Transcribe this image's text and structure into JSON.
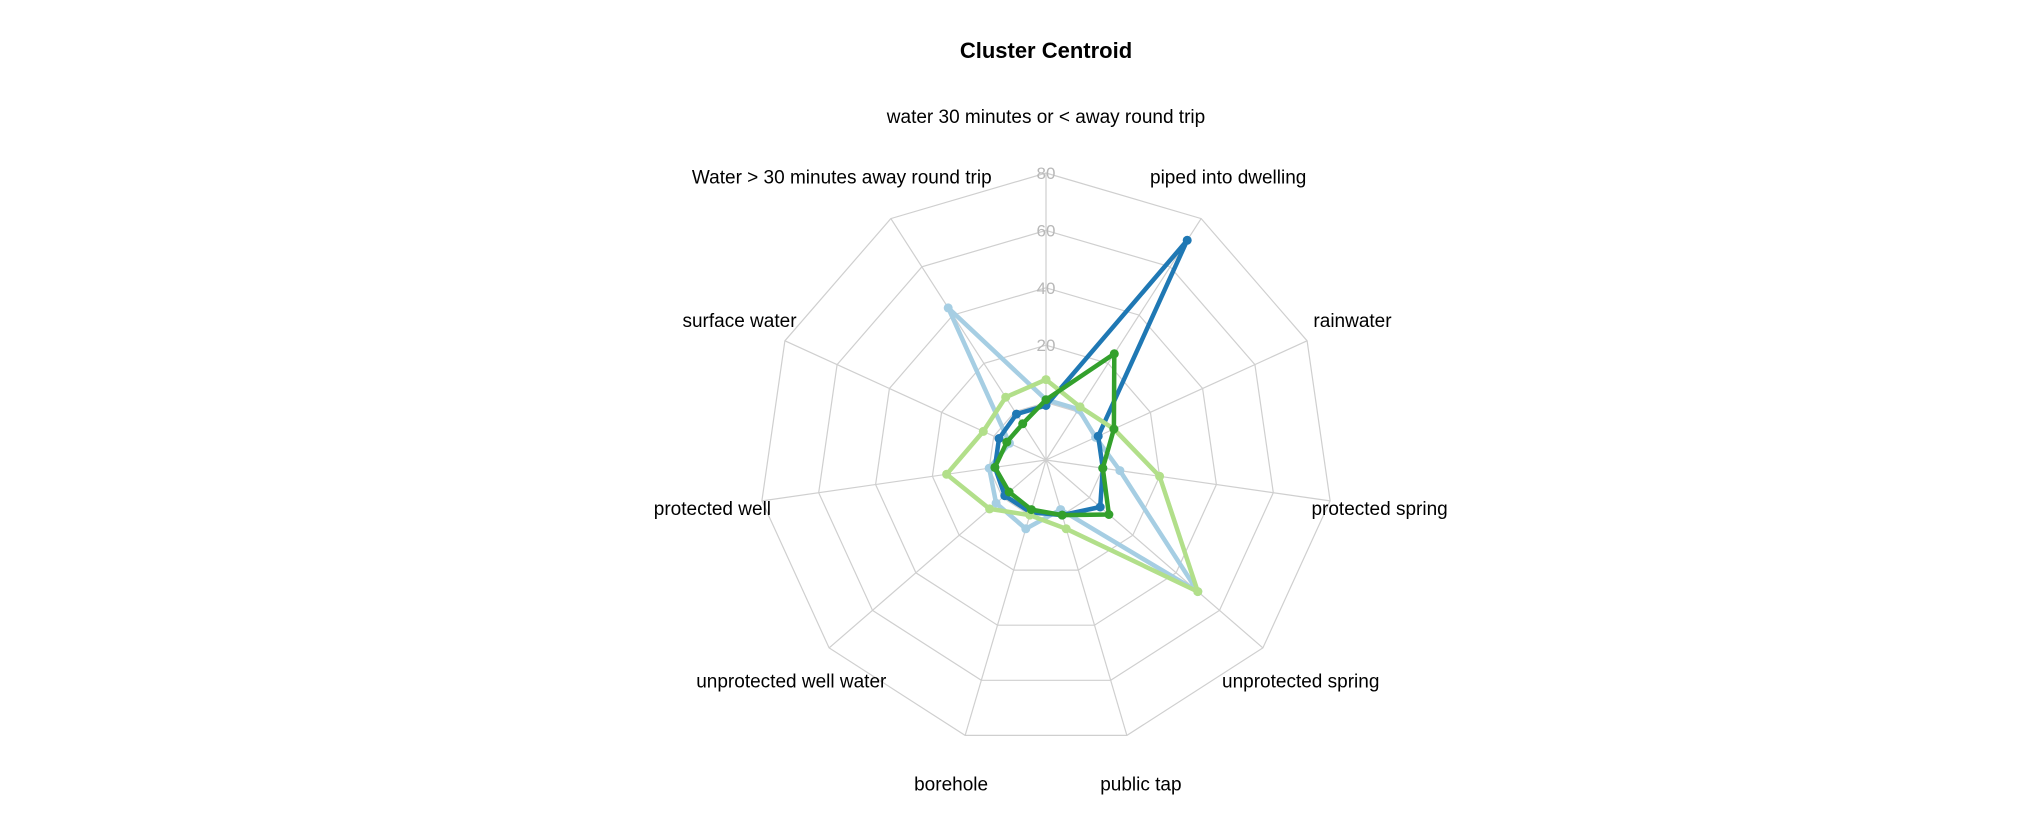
{
  "chart_data": {
    "type": "radar",
    "title": "Cluster Centroid",
    "axes": [
      "water 30 minutes or < away round trip",
      "piped into dwelling",
      "rainwater",
      "protected spring",
      "unprotected spring",
      "public tap",
      "borehole",
      "unprotected well water",
      "protected well",
      "surface water",
      "Water > 30 minutes away round trip"
    ],
    "rlim": [
      -20,
      80
    ],
    "ticks": [
      0,
      20,
      40,
      60,
      80
    ],
    "tick_labels": [
      "0",
      "20",
      "40",
      "60",
      "80"
    ],
    "grid": true,
    "series": [
      {
        "color": "#a6cee3",
        "values": [
          1,
          1,
          -1,
          6,
          50,
          -2,
          5,
          3,
          0,
          -6,
          43
        ]
      },
      {
        "color": "#1f78b4",
        "values": [
          -1,
          71,
          0,
          0,
          5,
          0,
          -1,
          -1,
          -2,
          -2,
          -1
        ]
      },
      {
        "color": "#b2df8a",
        "values": [
          8,
          2,
          6,
          20,
          50,
          5,
          0,
          6,
          15,
          4,
          6
        ]
      },
      {
        "color": "#33a02c",
        "values": [
          1,
          24,
          6,
          0,
          9,
          0,
          -2,
          -3,
          -2,
          -5,
          -5
        ]
      }
    ]
  }
}
